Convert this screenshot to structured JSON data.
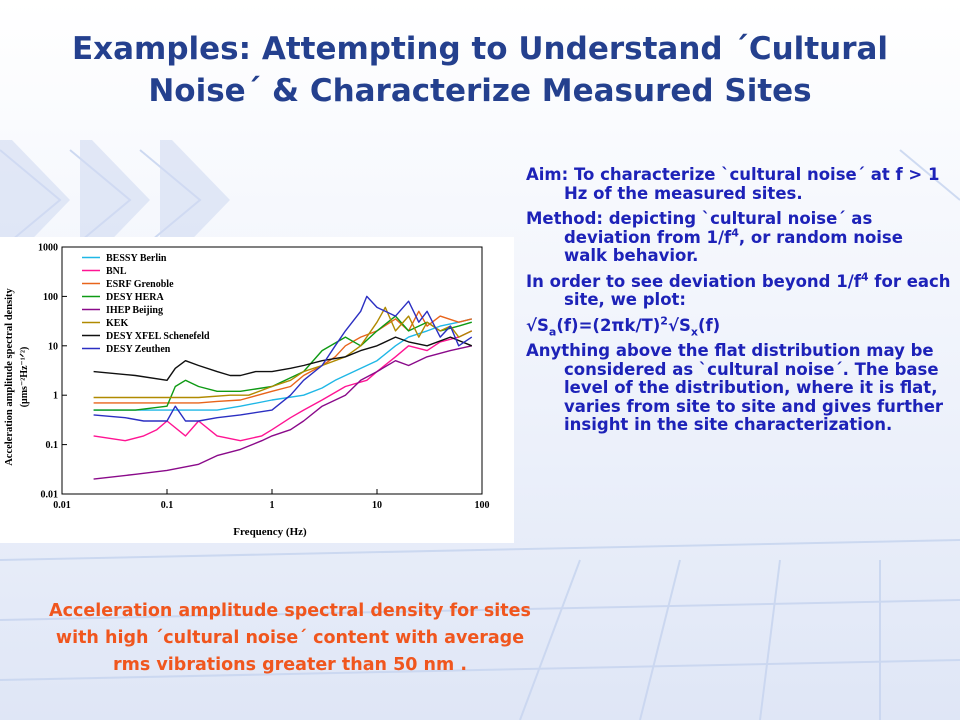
{
  "title": {
    "line1": "Examples: Attempting to Understand ´Cultural",
    "line2": "Noise´ & Characterize Measured Sites"
  },
  "bullets": {
    "aim": "Aim: To characterize `cultural noise´ at f > 1 Hz of the measured sites.",
    "method_pre": "Method: depicting `cultural noise´ as deviation from 1/f",
    "method_sup": "4",
    "method_post": ", or random noise walk behavior.",
    "order_pre": "In order to see deviation beyond 1/f",
    "order_sup": "4",
    "order_post": " for each site, we plot:",
    "formula_a": "√S",
    "formula_sub_a": "a",
    "formula_b": "(f)=(2πk/T)",
    "formula_sup": "2",
    "formula_c": "√S",
    "formula_sub_x": "x",
    "formula_d": "(f)",
    "anything": "Anything above the flat distribution may be considered as `cultural noise´. The base level of the distribution, where it is flat, varies from site to site and gives further insight in the site characterization."
  },
  "caption": {
    "line1": "Acceleration amplitude spectral density for sites",
    "line2": "with high ´cultural noise´ content with average",
    "line3": "rms vibrations greater than  50 nm ."
  },
  "chart_data": {
    "type": "line",
    "xlabel": "Frequency (Hz)",
    "ylabel": "Acceleration amplitude spectral density",
    "ylabel_unit": "(μms⁻²Hz⁻¹ᐟ²)",
    "xscale": "log",
    "yscale": "log",
    "xlim": [
      0.01,
      100
    ],
    "ylim": [
      0.01,
      1000
    ],
    "x_ticks": [
      0.01,
      0.1,
      1,
      10,
      100
    ],
    "x_tick_labels": [
      "0.01",
      "0.1",
      "1",
      "10",
      "100"
    ],
    "y_ticks": [
      0.01,
      0.1,
      1,
      10,
      100,
      1000
    ],
    "y_tick_labels": [
      "0.01",
      "0.1",
      "1",
      "10",
      "100",
      "1000"
    ],
    "grid": false,
    "legend_position": "top-left",
    "series": [
      {
        "name": "BESSY Berlin",
        "color": "#1fb7e6",
        "x": [
          0.02,
          0.1,
          0.3,
          0.5,
          1,
          2,
          3,
          4,
          6,
          8,
          10,
          15,
          20,
          30,
          40,
          60,
          80
        ],
        "y": [
          0.5,
          0.5,
          0.5,
          0.6,
          0.8,
          1.0,
          1.4,
          2,
          3,
          4,
          5,
          10,
          15,
          20,
          25,
          30,
          35
        ]
      },
      {
        "name": "BNL",
        "color": "#ff1493",
        "x": [
          0.02,
          0.04,
          0.06,
          0.08,
          0.1,
          0.15,
          0.2,
          0.3,
          0.5,
          0.8,
          1,
          1.5,
          2,
          3,
          5,
          8,
          10,
          15,
          20,
          30,
          40,
          60,
          80
        ],
        "y": [
          0.15,
          0.12,
          0.15,
          0.2,
          0.3,
          0.15,
          0.3,
          0.15,
          0.12,
          0.15,
          0.2,
          0.35,
          0.5,
          0.8,
          1.5,
          2,
          3,
          6,
          10,
          8,
          12,
          15,
          20
        ]
      },
      {
        "name": "ESRF Grenoble",
        "color": "#e8641b",
        "x": [
          0.02,
          0.1,
          0.2,
          0.3,
          0.5,
          1,
          1.5,
          2,
          3,
          4,
          5,
          7,
          10,
          15,
          20,
          25,
          30,
          40,
          60,
          80
        ],
        "y": [
          0.7,
          0.7,
          0.7,
          0.75,
          0.8,
          1.2,
          1.5,
          2.5,
          4,
          6,
          10,
          15,
          20,
          35,
          20,
          50,
          25,
          40,
          30,
          35
        ]
      },
      {
        "name": "DESY HERA",
        "color": "#0e9a14",
        "x": [
          0.02,
          0.05,
          0.1,
          0.12,
          0.15,
          0.2,
          0.3,
          0.5,
          1,
          2,
          3,
          5,
          7,
          10,
          15,
          20,
          30,
          40,
          60,
          80
        ],
        "y": [
          0.5,
          0.5,
          0.6,
          1.5,
          2,
          1.5,
          1.2,
          1.2,
          1.5,
          3,
          8,
          15,
          10,
          20,
          40,
          20,
          30,
          20,
          25,
          30
        ]
      },
      {
        "name": "IHEP Beijing",
        "color": "#8a0a8a",
        "x": [
          0.02,
          0.05,
          0.1,
          0.2,
          0.3,
          0.5,
          0.8,
          1,
          1.5,
          2,
          3,
          5,
          7,
          10,
          15,
          20,
          30,
          50,
          80
        ],
        "y": [
          0.02,
          0.025,
          0.03,
          0.04,
          0.06,
          0.08,
          0.12,
          0.15,
          0.2,
          0.3,
          0.6,
          1,
          2,
          3,
          5,
          4,
          6,
          8,
          10
        ]
      },
      {
        "name": "KEK",
        "color": "#b08a00",
        "x": [
          0.02,
          0.1,
          0.2,
          0.4,
          0.6,
          1,
          1.5,
          2,
          3,
          5,
          7,
          10,
          12,
          15,
          20,
          25,
          30,
          40,
          50,
          60,
          80
        ],
        "y": [
          0.9,
          0.9,
          0.9,
          1.0,
          1.0,
          1.5,
          2,
          3,
          4,
          6,
          10,
          30,
          60,
          20,
          40,
          15,
          30,
          20,
          25,
          15,
          20
        ]
      },
      {
        "name": "DESY XFEL Schenefeld",
        "color": "#101010",
        "x": [
          0.02,
          0.05,
          0.1,
          0.12,
          0.15,
          0.2,
          0.3,
          0.4,
          0.5,
          0.7,
          1,
          1.5,
          2,
          3,
          5,
          7,
          10,
          15,
          20,
          30,
          50,
          80
        ],
        "y": [
          3,
          2.5,
          2,
          3.5,
          5,
          4,
          3,
          2.5,
          2.5,
          3,
          3,
          3.5,
          4,
          5,
          6,
          8,
          10,
          15,
          12,
          10,
          15,
          10
        ]
      },
      {
        "name": "DESY Zeuthen",
        "color": "#2b2fc2",
        "x": [
          0.02,
          0.04,
          0.06,
          0.1,
          0.12,
          0.15,
          0.2,
          0.3,
          0.5,
          1,
          1.5,
          2,
          3,
          4,
          5,
          7,
          8,
          10,
          15,
          20,
          25,
          30,
          40,
          50,
          60,
          80
        ],
        "y": [
          0.4,
          0.35,
          0.3,
          0.3,
          0.6,
          0.3,
          0.3,
          0.35,
          0.4,
          0.5,
          1,
          2,
          4,
          10,
          20,
          50,
          100,
          60,
          40,
          80,
          30,
          50,
          15,
          25,
          10,
          15
        ]
      }
    ]
  },
  "colors": {
    "title": "#24408e",
    "body_text": "#1d22b8",
    "caption": "#f0561e"
  }
}
